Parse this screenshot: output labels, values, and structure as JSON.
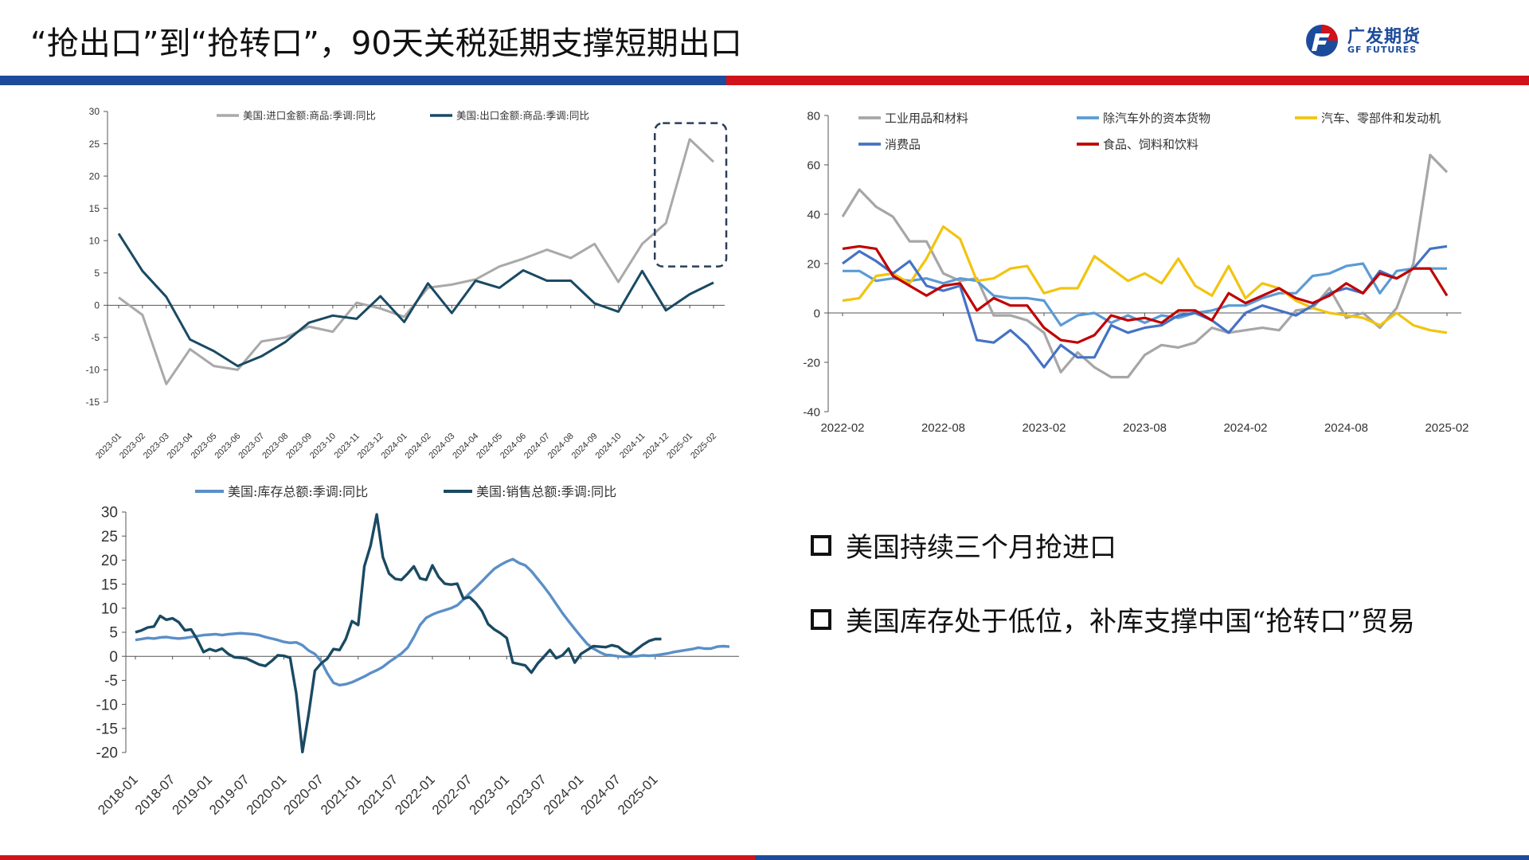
{
  "header": {
    "title": "“抢出口”到“抢转口”，90天关税延期支撑短期出口",
    "logo_cn": "广发期货",
    "logo_en": "GF FUTURES"
  },
  "colors": {
    "brand_blue": "#1d4b9b",
    "brand_red": "#d0121b"
  },
  "bullets": [
    "美国持续三个月抢进口",
    "美国库存处于低位，补库支撑中国“抢转口”贸易"
  ],
  "chart_data": [
    {
      "type": "line",
      "categories": [
        "2023-01",
        "2023-02",
        "2023-03",
        "2023-04",
        "2023-05",
        "2023-06",
        "2023-07",
        "2023-08",
        "2023-09",
        "2023-10",
        "2023-11",
        "2023-12",
        "2024-01",
        "2024-02",
        "2024-03",
        "2024-04",
        "2024-05",
        "2024-06",
        "2024-07",
        "2024-08",
        "2024-09",
        "2024-10",
        "2024-11",
        "2024-12",
        "2025-01",
        "2025-02"
      ],
      "ylim": [
        -15,
        30
      ],
      "yticks": [
        -15,
        -10,
        -5,
        0,
        5,
        10,
        15,
        20,
        25,
        30
      ],
      "series": [
        {
          "name": "美国:进口金额:商品:季调:同比",
          "color": "#a9a9a9",
          "values": [
            1.2,
            -1.5,
            -12.2,
            -6.8,
            -9.4,
            -10.0,
            -5.6,
            -5.0,
            -3.3,
            -4.1,
            0.4,
            -0.5,
            -1.8,
            2.7,
            3.2,
            4.0,
            6.0,
            7.2,
            8.6,
            7.3,
            9.5,
            3.6,
            9.5,
            12.7,
            25.7,
            22.2
          ]
        },
        {
          "name": "美国:出口金额:商品:季调:同比",
          "color": "#1a4a63",
          "values": [
            11.1,
            5.3,
            1.3,
            -5.3,
            -7.1,
            -9.4,
            -7.9,
            -5.7,
            -2.7,
            -1.6,
            -2.1,
            1.4,
            -2.6,
            3.4,
            -1.2,
            3.8,
            2.7,
            5.4,
            3.8,
            3.8,
            0.3,
            -1.0,
            5.3,
            -0.8,
            1.7,
            3.5
          ]
        }
      ]
    },
    {
      "type": "line",
      "x": [
        "2022-02",
        "2022-03",
        "2022-04",
        "2022-05",
        "2022-06",
        "2022-07",
        "2022-08",
        "2022-09",
        "2022-10",
        "2022-11",
        "2022-12",
        "2023-01",
        "2023-02",
        "2023-03",
        "2023-04",
        "2023-05",
        "2023-06",
        "2023-07",
        "2023-08",
        "2023-09",
        "2023-10",
        "2023-11",
        "2023-12",
        "2024-01",
        "2024-02",
        "2024-03",
        "2024-04",
        "2024-05",
        "2024-06",
        "2024-07",
        "2024-08",
        "2024-09",
        "2024-10",
        "2024-11",
        "2024-12",
        "2025-01",
        "2025-02"
      ],
      "xticks": [
        "2022-02",
        "2022-08",
        "2023-02",
        "2023-08",
        "2024-02",
        "2024-08",
        "2025-02"
      ],
      "ylim": [
        -40,
        80
      ],
      "yticks": [
        -40,
        -20,
        0,
        20,
        40,
        60,
        80
      ],
      "series": [
        {
          "name": "工业用品和材料",
          "color": "#a6a6a6",
          "values": [
            39,
            50,
            43,
            39,
            29,
            29,
            16,
            13,
            14,
            -1,
            -1,
            -3,
            -8,
            -24,
            -16,
            -22,
            -26,
            -26,
            -17,
            -13,
            -14,
            -12,
            -6,
            -8,
            -7,
            -6,
            -7,
            1,
            2,
            10,
            -2,
            0,
            -6,
            2,
            20,
            64,
            57
          ]
        },
        {
          "name": "除汽车外的资本货物",
          "color": "#5b9bd5",
          "values": [
            17,
            17,
            13,
            14,
            13,
            14,
            12,
            14,
            13,
            7,
            6,
            6,
            5,
            -5,
            -1,
            0,
            -4,
            -1,
            -4,
            -1,
            -2,
            0,
            1,
            3,
            3,
            6,
            8,
            8,
            15,
            16,
            19,
            20,
            8,
            17,
            18,
            18,
            18
          ]
        },
        {
          "name": "汽车、零部件和发动机",
          "color": "#f1c40f",
          "values": [
            5,
            6,
            15,
            16,
            12,
            22,
            35,
            30,
            13,
            14,
            18,
            19,
            8,
            10,
            10,
            23,
            18,
            13,
            16,
            12,
            22,
            11,
            7,
            19,
            6,
            12,
            10,
            5,
            2,
            0,
            -1,
            -2,
            -5,
            0,
            -5,
            -7,
            -8
          ]
        },
        {
          "name": "消费品",
          "color": "#4472c4",
          "values": [
            20,
            25,
            21,
            16,
            21,
            11,
            9,
            11,
            -11,
            -12,
            -7,
            -13,
            -22,
            -13,
            -18,
            -18,
            -5,
            -8,
            -6,
            -5,
            -1,
            0,
            -3,
            -8,
            0,
            3,
            1,
            -1,
            3,
            8,
            10,
            8,
            17,
            14,
            18,
            26,
            27
          ]
        },
        {
          "name": "食品、饲料和饮料",
          "color": "#c00000",
          "values": [
            26,
            27,
            26,
            15,
            11,
            7,
            11,
            12,
            1,
            6,
            3,
            3,
            -6,
            -11,
            -12,
            -9,
            -1,
            -3,
            -2,
            -4,
            1,
            1,
            -3,
            8,
            4,
            7,
            10,
            6,
            4,
            7,
            12,
            8,
            16,
            14,
            18,
            18,
            7
          ]
        }
      ]
    },
    {
      "type": "line",
      "xticks": [
        "2018-01",
        "2018-07",
        "2019-01",
        "2019-07",
        "2020-01",
        "2020-07",
        "2021-01",
        "2021-07",
        "2022-01",
        "2022-07",
        "2023-01",
        "2023-07",
        "2024-01",
        "2024-07",
        "2025-01"
      ],
      "x_start": "2018-01",
      "ylim": [
        -20,
        30
      ],
      "yticks": [
        -20,
        -15,
        -10,
        -5,
        0,
        5,
        10,
        15,
        20,
        25,
        30
      ],
      "series": [
        {
          "name": "美国:库存总额:季调:同比",
          "color": "#5b8fc7",
          "values": [
            3.4,
            3.6,
            3.8,
            3.7,
            3.9,
            4.0,
            3.8,
            3.7,
            3.8,
            4.0,
            4.2,
            4.4,
            4.5,
            4.6,
            4.4,
            4.6,
            4.7,
            4.8,
            4.7,
            4.6,
            4.4,
            4.0,
            3.7,
            3.4,
            3.0,
            2.8,
            2.9,
            2.3,
            1.2,
            0.5,
            -1.0,
            -3.5,
            -5.5,
            -6.0,
            -5.8,
            -5.4,
            -4.8,
            -4.2,
            -3.5,
            -2.9,
            -2.2,
            -1.2,
            -0.3,
            0.6,
            1.8,
            4.0,
            6.5,
            8.0,
            8.7,
            9.2,
            9.6,
            10.0,
            10.6,
            11.8,
            13.1,
            14.3,
            15.6,
            16.9,
            18.2,
            19.0,
            19.7,
            20.2,
            19.4,
            18.9,
            17.7,
            16.1,
            14.5,
            12.8,
            10.9,
            9.0,
            7.3,
            5.7,
            4.1,
            2.6,
            1.6,
            0.9,
            0.3,
            0.2,
            0.0,
            -0.1,
            0.0,
            0.0,
            0.2,
            0.1,
            0.2,
            0.4,
            0.6,
            0.9,
            1.1,
            1.3,
            1.5,
            1.8,
            1.6,
            1.6,
            2.0,
            2.1,
            2.0
          ]
        },
        {
          "name": "美国:销售总额:季调:同比",
          "color": "#1a4a63",
          "values": [
            5.0,
            5.4,
            6.0,
            6.2,
            8.4,
            7.6,
            7.9,
            7.1,
            5.4,
            5.6,
            3.5,
            0.9,
            1.5,
            1.1,
            1.6,
            0.5,
            -0.2,
            -0.3,
            -0.5,
            -1.1,
            -1.7,
            -2.0,
            -1.0,
            0.2,
            0.1,
            -0.3,
            -7.7,
            -19.9,
            -12.0,
            -3.0,
            -1.5,
            -0.5,
            1.5,
            1.3,
            3.6,
            7.3,
            6.5,
            18.7,
            23.0,
            29.5,
            20.6,
            17.2,
            16.1,
            15.9,
            17.2,
            18.7,
            16.2,
            15.9,
            18.9,
            16.5,
            15.1,
            14.9,
            15.1,
            12.0,
            12.3,
            11.1,
            9.4,
            6.7,
            5.6,
            4.8,
            3.8,
            -1.3,
            -1.6,
            -1.9,
            -3.4,
            -1.5,
            -0.1,
            1.3,
            -0.4,
            0.2,
            1.6,
            -1.3,
            0.5,
            1.3,
            2.1,
            2.0,
            1.9,
            2.3,
            2.0,
            1.0,
            0.4,
            1.4,
            2.4,
            3.2,
            3.6,
            3.6
          ]
        }
      ]
    }
  ]
}
